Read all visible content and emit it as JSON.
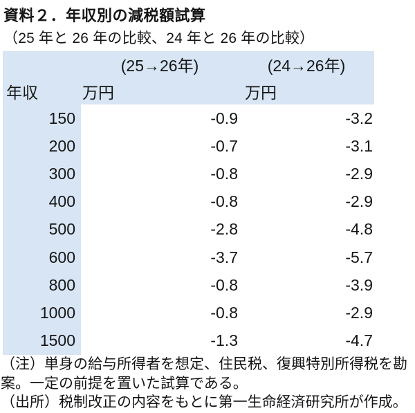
{
  "page": {
    "title": "資料２．年収別の減税額試算",
    "subtitle": "（25 年と 26 年の比較、24 年と 26 年の比較）"
  },
  "table": {
    "group_headers": {
      "col_25_26": "(25→26年)",
      "col_24_26": "(24→26年)"
    },
    "headers": {
      "income": "年収",
      "unit_25_26": "万円",
      "unit_24_26": "万円"
    },
    "rows": [
      {
        "income": "150",
        "v25_26": "-0.9",
        "v24_26": "-3.2"
      },
      {
        "income": "200",
        "v25_26": "-0.7",
        "v24_26": "-3.1"
      },
      {
        "income": "300",
        "v25_26": "-0.8",
        "v24_26": "-2.9"
      },
      {
        "income": "400",
        "v25_26": "-0.8",
        "v24_26": "-2.9"
      },
      {
        "income": "500",
        "v25_26": "-2.8",
        "v24_26": "-4.8"
      },
      {
        "income": "600",
        "v25_26": "-3.7",
        "v24_26": "-5.7"
      },
      {
        "income": "800",
        "v25_26": "-0.8",
        "v24_26": "-3.9"
      },
      {
        "income": "1000",
        "v25_26": "-0.8",
        "v24_26": "-2.9"
      },
      {
        "income": "1500",
        "v25_26": "-1.3",
        "v24_26": "-4.7"
      }
    ]
  },
  "notes": {
    "note_line1": "（注）単身の給与所得者を想定、住民税、復興特別所得税を勘",
    "note_line2": "案。一定の前提を置いた試算である。",
    "source_line": "（出所）税制改正の内容をもとに第一生命経済研究所が作成。"
  },
  "colors": {
    "header_bg": "#d7e5f4",
    "text": "#151515",
    "page_bg": "#ffffff"
  }
}
